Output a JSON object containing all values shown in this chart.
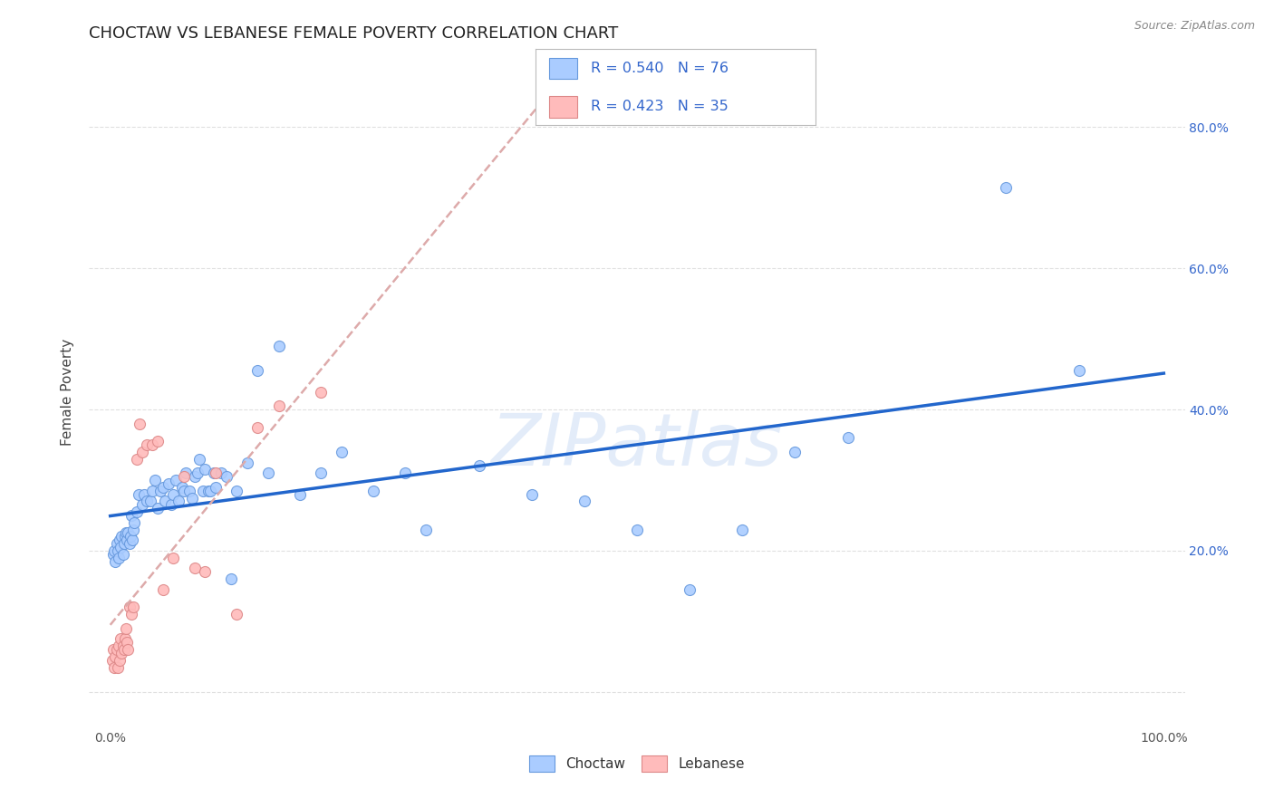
{
  "title": "CHOCTAW VS LEBANESE FEMALE POVERTY CORRELATION CHART",
  "source": "Source: ZipAtlas.com",
  "ylabel": "Female Poverty",
  "xlim": [
    -0.02,
    1.02
  ],
  "ylim": [
    -0.05,
    0.9
  ],
  "choctaw_color": "#aaccff",
  "lebanese_color": "#ffbbbb",
  "choctaw_edge_color": "#6699dd",
  "lebanese_edge_color": "#dd8888",
  "choctaw_line_color": "#2266cc",
  "lebanese_line_color": "#ddaaaa",
  "R_choctaw": 0.54,
  "N_choctaw": 76,
  "R_lebanese": 0.423,
  "N_lebanese": 35,
  "legend_text_color": "#3366cc",
  "background_color": "#ffffff",
  "grid_color": "#dddddd",
  "watermark": "ZIPatlas",
  "title_fontsize": 13,
  "axis_label_fontsize": 10,
  "choctaw_x": [
    0.003,
    0.004,
    0.005,
    0.006,
    0.007,
    0.008,
    0.009,
    0.01,
    0.011,
    0.012,
    0.013,
    0.014,
    0.015,
    0.016,
    0.017,
    0.018,
    0.019,
    0.02,
    0.021,
    0.022,
    0.023,
    0.025,
    0.027,
    0.03,
    0.032,
    0.035,
    0.038,
    0.04,
    0.042,
    0.045,
    0.048,
    0.05,
    0.052,
    0.055,
    0.058,
    0.06,
    0.062,
    0.065,
    0.068,
    0.07,
    0.072,
    0.075,
    0.078,
    0.08,
    0.083,
    0.085,
    0.088,
    0.09,
    0.093,
    0.095,
    0.098,
    0.1,
    0.105,
    0.11,
    0.115,
    0.12,
    0.13,
    0.14,
    0.15,
    0.16,
    0.18,
    0.2,
    0.22,
    0.25,
    0.28,
    0.3,
    0.35,
    0.4,
    0.45,
    0.5,
    0.55,
    0.6,
    0.65,
    0.7,
    0.85,
    0.92
  ],
  "choctaw_y": [
    0.195,
    0.2,
    0.185,
    0.21,
    0.2,
    0.19,
    0.215,
    0.205,
    0.22,
    0.195,
    0.21,
    0.22,
    0.225,
    0.215,
    0.225,
    0.21,
    0.22,
    0.25,
    0.215,
    0.23,
    0.24,
    0.255,
    0.28,
    0.265,
    0.28,
    0.27,
    0.27,
    0.285,
    0.3,
    0.26,
    0.285,
    0.29,
    0.27,
    0.295,
    0.265,
    0.28,
    0.3,
    0.27,
    0.29,
    0.285,
    0.31,
    0.285,
    0.275,
    0.305,
    0.31,
    0.33,
    0.285,
    0.315,
    0.285,
    0.285,
    0.31,
    0.29,
    0.31,
    0.305,
    0.16,
    0.285,
    0.325,
    0.455,
    0.31,
    0.49,
    0.28,
    0.31,
    0.34,
    0.285,
    0.31,
    0.23,
    0.32,
    0.28,
    0.27,
    0.23,
    0.145,
    0.23,
    0.34,
    0.36,
    0.715,
    0.455
  ],
  "lebanese_x": [
    0.002,
    0.003,
    0.004,
    0.005,
    0.006,
    0.007,
    0.008,
    0.009,
    0.01,
    0.011,
    0.012,
    0.013,
    0.014,
    0.015,
    0.016,
    0.017,
    0.018,
    0.02,
    0.022,
    0.025,
    0.028,
    0.03,
    0.035,
    0.04,
    0.045,
    0.05,
    0.06,
    0.07,
    0.08,
    0.09,
    0.1,
    0.12,
    0.14,
    0.16,
    0.2
  ],
  "lebanese_y": [
    0.045,
    0.06,
    0.035,
    0.05,
    0.06,
    0.035,
    0.065,
    0.045,
    0.075,
    0.055,
    0.065,
    0.06,
    0.075,
    0.09,
    0.07,
    0.06,
    0.12,
    0.11,
    0.12,
    0.33,
    0.38,
    0.34,
    0.35,
    0.35,
    0.355,
    0.145,
    0.19,
    0.305,
    0.175,
    0.17,
    0.31,
    0.11,
    0.375,
    0.405,
    0.425
  ]
}
